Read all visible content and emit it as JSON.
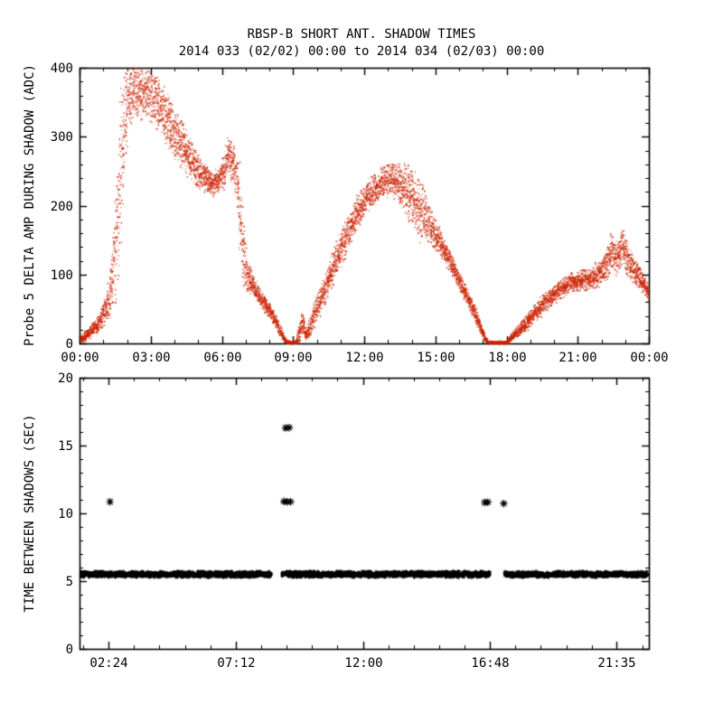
{
  "figure": {
    "background": "#ffffff",
    "axis_color": "#000000"
  },
  "chart_data": [
    {
      "type": "scatter",
      "name": "probe5-delta-amp-during-shadow",
      "title": "RBSP-B SHORT ANT. SHADOW TIMES",
      "subtitle": "2014 033 (02/02) 00:00 to 2014 034 (02/03) 00:00",
      "xlabel": "",
      "ylabel": "Probe 5 DELTA AMP DURING SHADOW (ADC)",
      "xlim": [
        0,
        24
      ],
      "ylim": [
        0,
        400
      ],
      "xticks": [
        {
          "v": 0,
          "label": "00:00"
        },
        {
          "v": 3,
          "label": "03:00"
        },
        {
          "v": 6,
          "label": "06:00"
        },
        {
          "v": 9,
          "label": "09:00"
        },
        {
          "v": 12,
          "label": "12:00"
        },
        {
          "v": 15,
          "label": "15:00"
        },
        {
          "v": 18,
          "label": "18:00"
        },
        {
          "v": 21,
          "label": "21:00"
        },
        {
          "v": 24,
          "label": "00:00"
        }
      ],
      "xminor_step": 1,
      "yticks": [
        {
          "v": 0,
          "label": "0"
        },
        {
          "v": 100,
          "label": "100"
        },
        {
          "v": 200,
          "label": "200"
        },
        {
          "v": 300,
          "label": "300"
        },
        {
          "v": 400,
          "label": "400"
        }
      ],
      "yminor_step": 20,
      "marker": "dot",
      "color": "#cc2200",
      "points_per_hour": 360,
      "envelope": [
        [
          0.0,
          6,
          4
        ],
        [
          0.4,
          16,
          6
        ],
        [
          0.8,
          32,
          9
        ],
        [
          1.1,
          52,
          14
        ],
        [
          1.3,
          80,
          28
        ],
        [
          1.5,
          140,
          60
        ],
        [
          1.7,
          240,
          85
        ],
        [
          1.9,
          330,
          55
        ],
        [
          2.05,
          362,
          32
        ],
        [
          2.3,
          370,
          28
        ],
        [
          2.6,
          366,
          28
        ],
        [
          2.9,
          360,
          27
        ],
        [
          3.2,
          352,
          26
        ],
        [
          3.5,
          338,
          26
        ],
        [
          3.8,
          318,
          27
        ],
        [
          4.1,
          300,
          26
        ],
        [
          4.4,
          284,
          24
        ],
        [
          4.7,
          266,
          21
        ],
        [
          5.0,
          250,
          17
        ],
        [
          5.3,
          240,
          14
        ],
        [
          5.6,
          232,
          12
        ],
        [
          5.85,
          236,
          14
        ],
        [
          6.05,
          252,
          20
        ],
        [
          6.25,
          272,
          22
        ],
        [
          6.45,
          262,
          22
        ],
        [
          6.62,
          238,
          20
        ],
        [
          6.75,
          195,
          45
        ],
        [
          6.9,
          130,
          38
        ],
        [
          7.05,
          100,
          18
        ],
        [
          7.3,
          84,
          11
        ],
        [
          7.6,
          66,
          9
        ],
        [
          7.9,
          52,
          8
        ],
        [
          8.2,
          36,
          7
        ],
        [
          8.45,
          18,
          6
        ],
        [
          8.62,
          6,
          3
        ],
        [
          8.75,
          2,
          1.6
        ],
        [
          9.1,
          2,
          1.6
        ],
        [
          9.25,
          18,
          11
        ],
        [
          9.38,
          32,
          14
        ],
        [
          9.52,
          12,
          7
        ],
        [
          9.68,
          22,
          10
        ],
        [
          9.85,
          40,
          13
        ],
        [
          10.05,
          58,
          15
        ],
        [
          10.35,
          82,
          17
        ],
        [
          10.65,
          108,
          17
        ],
        [
          11.0,
          138,
          17
        ],
        [
          11.35,
          166,
          17
        ],
        [
          11.7,
          192,
          17
        ],
        [
          12.05,
          212,
          16
        ],
        [
          12.4,
          226,
          16
        ],
        [
          12.75,
          234,
          16
        ],
        [
          13.1,
          240,
          17
        ],
        [
          13.35,
          238,
          19
        ],
        [
          13.6,
          228,
          22
        ],
        [
          13.85,
          215,
          30
        ],
        [
          14.1,
          206,
          36
        ],
        [
          14.35,
          194,
          32
        ],
        [
          14.6,
          182,
          24
        ],
        [
          14.85,
          168,
          19
        ],
        [
          15.1,
          152,
          15
        ],
        [
          15.4,
          132,
          12
        ],
        [
          15.7,
          112,
          10
        ],
        [
          16.0,
          92,
          10
        ],
        [
          16.3,
          70,
          9
        ],
        [
          16.6,
          48,
          8
        ],
        [
          16.85,
          27,
          6
        ],
        [
          17.05,
          10,
          4
        ],
        [
          17.2,
          2,
          1.6
        ],
        [
          18.0,
          2,
          1.6
        ],
        [
          18.15,
          8,
          4
        ],
        [
          18.45,
          18,
          6
        ],
        [
          18.8,
          30,
          8
        ],
        [
          19.15,
          44,
          9
        ],
        [
          19.5,
          56,
          10
        ],
        [
          19.85,
          68,
          10
        ],
        [
          20.2,
          78,
          10
        ],
        [
          20.55,
          86,
          10
        ],
        [
          20.9,
          90,
          10
        ],
        [
          21.25,
          93,
          11
        ],
        [
          21.6,
          96,
          12
        ],
        [
          21.95,
          102,
          14
        ],
        [
          22.2,
          116,
          18
        ],
        [
          22.4,
          138,
          20
        ],
        [
          22.6,
          122,
          18
        ],
        [
          22.85,
          142,
          21
        ],
        [
          23.05,
          126,
          18
        ],
        [
          23.25,
          112,
          15
        ],
        [
          23.5,
          100,
          13
        ],
        [
          23.75,
          86,
          11
        ],
        [
          24.0,
          72,
          10
        ]
      ]
    },
    {
      "type": "scatter",
      "name": "time-between-shadows",
      "title": "",
      "xlabel": "",
      "ylabel": "TIME BETWEEN SHADOWS (SEC)",
      "xlim": [
        1.3,
        22.8
      ],
      "ylim": [
        0,
        20
      ],
      "xticks": [
        {
          "v": 2.4,
          "label": "02:24"
        },
        {
          "v": 7.2,
          "label": "07:12"
        },
        {
          "v": 12.0,
          "label": "12:00"
        },
        {
          "v": 16.8,
          "label": "16:48"
        },
        {
          "v": 21.5833,
          "label": "21:35"
        }
      ],
      "xminor_step": 0.96,
      "yticks": [
        {
          "v": 0,
          "label": "0"
        },
        {
          "v": 5,
          "label": "5"
        },
        {
          "v": 10,
          "label": "10"
        },
        {
          "v": 15,
          "label": "15"
        },
        {
          "v": 20,
          "label": "20"
        }
      ],
      "yminor_step": 1,
      "marker": "asterisk",
      "color": "#000000",
      "band": {
        "y": 5.5,
        "spread": 0.16,
        "markers_per_hour": 155,
        "segments": [
          [
            1.32,
            8.55
          ],
          [
            8.95,
            16.78
          ],
          [
            17.35,
            22.75
          ]
        ]
      },
      "outliers": [
        {
          "x": 2.45,
          "y": 10.85
        },
        {
          "x": 9.08,
          "y": 16.3
        },
        {
          "x": 9.22,
          "y": 16.32
        },
        {
          "x": 9.02,
          "y": 10.88
        },
        {
          "x": 9.14,
          "y": 10.85
        },
        {
          "x": 9.27,
          "y": 10.86
        },
        {
          "x": 16.6,
          "y": 10.8
        },
        {
          "x": 16.72,
          "y": 10.82
        },
        {
          "x": 17.32,
          "y": 10.72
        }
      ]
    }
  ]
}
